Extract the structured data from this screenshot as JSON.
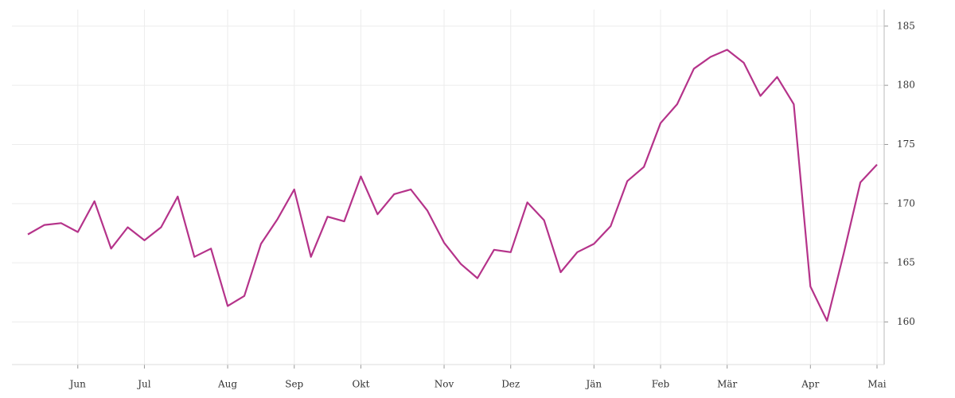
{
  "chart_data": {
    "type": "line",
    "categories": [
      null,
      null,
      null,
      "Jun",
      null,
      null,
      null,
      "Jul",
      null,
      null,
      null,
      null,
      "Aug",
      null,
      null,
      null,
      "Sep",
      null,
      null,
      null,
      "Okt",
      null,
      null,
      null,
      null,
      "Nov",
      null,
      null,
      null,
      "Dez",
      null,
      null,
      null,
      null,
      "Jän",
      null,
      null,
      null,
      "Feb",
      null,
      null,
      null,
      "Mär",
      null,
      null,
      null,
      null,
      "Apr",
      null,
      null,
      null,
      "Mai"
    ],
    "series": [
      {
        "color": "#b5338a",
        "values": [
          167.4,
          168.2,
          168.35,
          167.6,
          170.2,
          166.2,
          168.0,
          166.9,
          168.0,
          170.6,
          165.5,
          166.2,
          161.35,
          162.2,
          166.6,
          168.7,
          171.2,
          165.5,
          168.9,
          168.5,
          172.3,
          169.1,
          170.8,
          171.2,
          169.4,
          166.7,
          164.9,
          163.7,
          166.1,
          165.9,
          170.1,
          168.6,
          164.2,
          165.9,
          166.6,
          168.1,
          171.9,
          173.1,
          176.8,
          178.4,
          181.4,
          182.4,
          183.0,
          181.9,
          179.1,
          180.7,
          178.4,
          163.0,
          160.1,
          165.8,
          171.8,
          173.3
        ]
      }
    ],
    "ylim": [
      156.4,
      186.4
    ],
    "yticks": [
      160,
      165,
      170,
      175,
      180,
      185
    ],
    "grid": true
  }
}
